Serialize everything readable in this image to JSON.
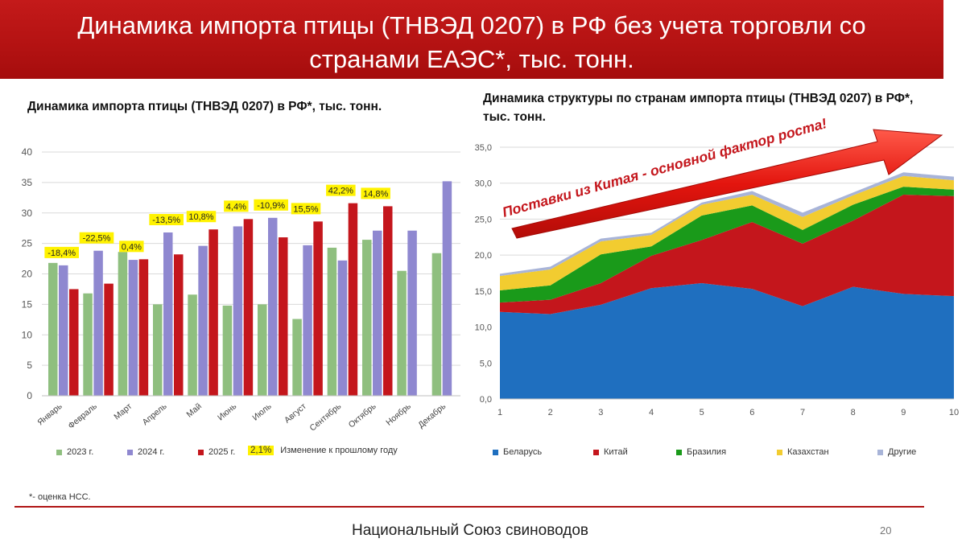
{
  "header": {
    "title_line1": "Динамика импорта птицы (ТНВЭД 0207) в РФ без учета торговли со",
    "title_line2": "странами ЕАЭС*, тыс. тонн."
  },
  "left_chart_title": "Динамика импорта птицы (ТНВЭД 0207) в РФ*, тыс. тонн.",
  "right_chart_title": "Динамика структуры по странам импорта птицы (ТНВЭД 0207) в РФ*, тыс. тонн.",
  "footnote": "*- оценка НСС.",
  "footer": {
    "org": "Национальный Союз свиноводов",
    "page": "20"
  },
  "chart_data": [
    {
      "type": "bar",
      "categories": [
        "Январь",
        "Февраль",
        "Март",
        "Апрель",
        "Май",
        "Июнь",
        "Июль",
        "Август",
        "Сентябрь",
        "Октябрь",
        "Ноябрь",
        "Декабрь"
      ],
      "ylim": [
        0,
        40
      ],
      "yticks": [
        "0",
        "5",
        "10",
        "15",
        "20",
        "25",
        "30",
        "35",
        "40"
      ],
      "series": [
        {
          "name": "2023 г.",
          "color": "#8fbf7f",
          "values": [
            21.8,
            16.8,
            23.6,
            15.0,
            16.6,
            14.8,
            15.0,
            12.6,
            24.3,
            25.6,
            20.5,
            23.4
          ]
        },
        {
          "name": "2024 г.",
          "color": "#8f88d0",
          "values": [
            21.4,
            23.8,
            22.3,
            26.8,
            24.6,
            27.8,
            29.2,
            24.7,
            22.2,
            27.1,
            27.1,
            35.2
          ]
        },
        {
          "name": "2025 г.",
          "color": "#c4161c",
          "values": [
            17.5,
            18.4,
            22.4,
            23.2,
            27.3,
            29.0,
            26.0,
            28.6,
            31.6,
            31.1,
            null,
            null
          ]
        }
      ],
      "change_labels": [
        "-18,4%",
        "-22,5%",
        "0,4%",
        "-13,5%",
        "10,8%",
        "4,4%",
        "-10,9%",
        "15,5%",
        "42,2%",
        "14,8%",
        null,
        null
      ],
      "legend_change_sample": "2,1%",
      "legend_change_text": "Изменение к прошлому году"
    },
    {
      "type": "area",
      "stacked": true,
      "x": [
        1,
        2,
        3,
        4,
        5,
        6,
        7,
        8,
        9,
        10
      ],
      "ylim": [
        0,
        35
      ],
      "yticks": [
        "0,0",
        "5,0",
        "10,0",
        "15,0",
        "20,0",
        "25,0",
        "30,0",
        "35,0"
      ],
      "series": [
        {
          "name": "Беларусь",
          "color": "#1f6fbf",
          "values": [
            12.1,
            11.8,
            13.1,
            15.4,
            16.1,
            15.3,
            12.9,
            15.6,
            14.6,
            14.3
          ]
        },
        {
          "name": "Китай",
          "color": "#c4161c",
          "values": [
            1.3,
            2.0,
            3.0,
            4.5,
            6.0,
            9.3,
            8.7,
            9.2,
            13.8,
            13.9
          ]
        },
        {
          "name": "Бразилия",
          "color": "#1a9a1a",
          "values": [
            1.7,
            2.0,
            4.0,
            1.3,
            3.4,
            2.3,
            1.9,
            2.2,
            1.1,
            0.9
          ]
        },
        {
          "name": "Казахстан",
          "color": "#f2cc30",
          "values": [
            2.0,
            2.2,
            1.8,
            1.6,
            1.5,
            1.5,
            1.8,
            1.3,
            1.5,
            1.3
          ]
        },
        {
          "name": "Другие",
          "color": "#a8b4d8",
          "values": [
            0.3,
            0.4,
            0.4,
            0.3,
            0.3,
            0.5,
            0.6,
            0.4,
            0.5,
            0.5
          ]
        }
      ],
      "annotation": "Поставки из Китая  - основной фактор роста!"
    }
  ]
}
